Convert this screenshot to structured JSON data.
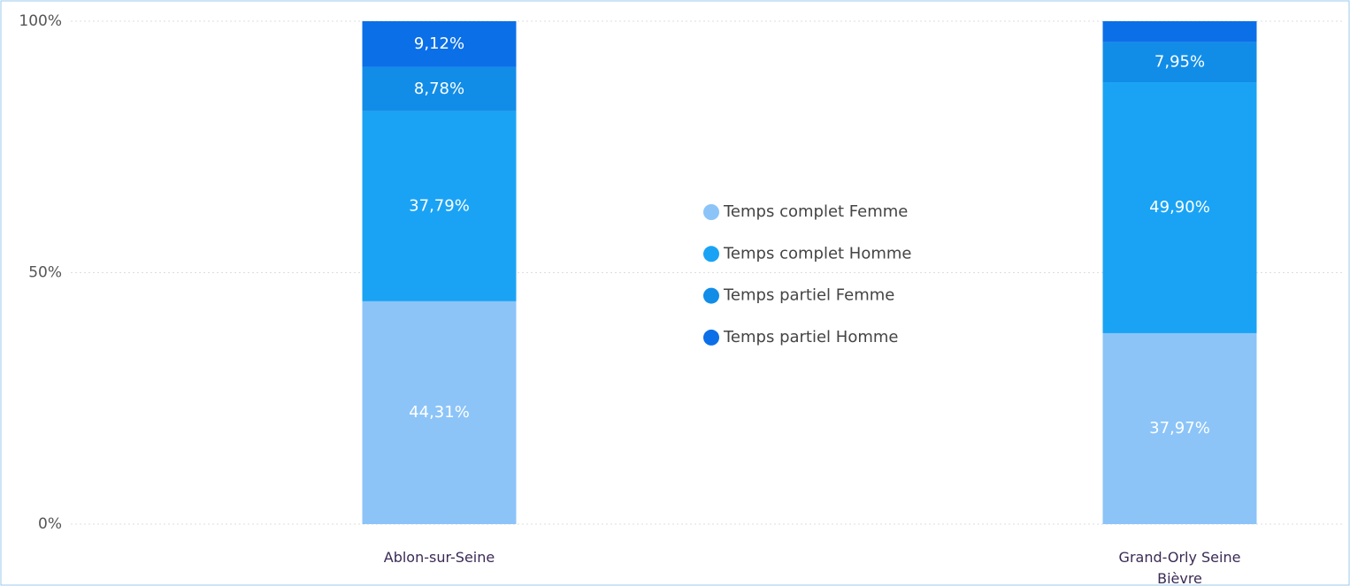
{
  "chart_data": {
    "type": "stacked_bar",
    "categories": [
      "Ablon-sur-Seine",
      "Grand-Orly Seine Bièvre"
    ],
    "series": [
      {
        "name": "Temps complet Femme",
        "color": "#8cc4f8",
        "values": [
          44.31,
          37.97
        ],
        "value_labels": [
          "44,31%",
          "37,97%"
        ]
      },
      {
        "name": "Temps complet Homme",
        "color": "#1aa3f5",
        "values": [
          37.79,
          49.9
        ],
        "value_labels": [
          "37,79%",
          "49,90%"
        ]
      },
      {
        "name": "Temps partiel Femme",
        "color": "#118de8",
        "values": [
          8.78,
          7.95
        ],
        "value_labels": [
          "8,78%",
          "7,95%"
        ]
      },
      {
        "name": "Temps partiel Homme",
        "color": "#0b6fe8",
        "values": [
          9.12,
          4.18
        ],
        "value_labels": [
          "9,12%",
          null
        ]
      }
    ],
    "ylim": [
      0,
      100
    ],
    "yticks": [
      {
        "value": 0,
        "label": "0%"
      },
      {
        "value": 50,
        "label": "50%"
      },
      {
        "value": 100,
        "label": "100%"
      }
    ],
    "grid": true
  }
}
